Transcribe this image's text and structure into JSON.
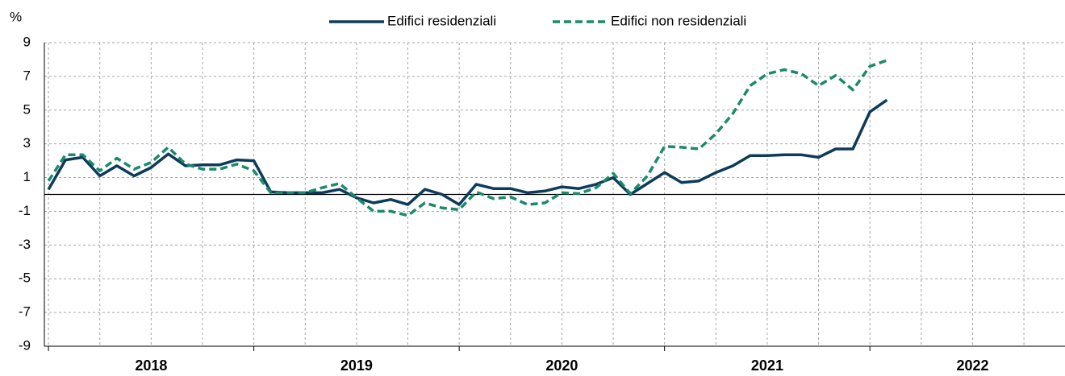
{
  "chart_data": {
    "type": "line",
    "y_unit": "%",
    "x": [
      2018,
      2018.083,
      2018.167,
      2018.25,
      2018.333,
      2018.417,
      2018.5,
      2018.583,
      2018.667,
      2018.75,
      2018.833,
      2018.917,
      2019,
      2019.083,
      2019.167,
      2019.25,
      2019.333,
      2019.417,
      2019.5,
      2019.583,
      2019.667,
      2019.75,
      2019.833,
      2019.917,
      2020,
      2020.083,
      2020.167,
      2020.25,
      2020.333,
      2020.417,
      2020.5,
      2020.583,
      2020.667,
      2020.75,
      2020.833,
      2020.917,
      2021,
      2021.083,
      2021.167,
      2021.25,
      2021.333,
      2021.417,
      2021.5,
      2021.583,
      2021.667,
      2021.75,
      2021.833,
      2021.917,
      2022,
      2022.083
    ],
    "series": [
      {
        "name": "Edifici residenziali",
        "color": "#0d3b5a",
        "dashed": false,
        "values": [
          0.3,
          2.05,
          2.2,
          1.1,
          1.7,
          1.1,
          1.6,
          2.4,
          1.7,
          1.75,
          1.75,
          2.05,
          2.0,
          0.15,
          0.1,
          0.1,
          0.1,
          0.3,
          -0.2,
          -0.5,
          -0.3,
          -0.6,
          0.3,
          0.0,
          -0.6,
          0.6,
          0.35,
          0.35,
          0.1,
          0.2,
          0.45,
          0.35,
          0.6,
          1.0,
          0.0,
          0.65,
          1.3,
          0.7,
          0.8,
          1.3,
          1.7,
          2.3,
          2.3,
          2.35,
          2.35,
          2.2,
          2.7,
          2.7,
          4.9,
          5.6
        ]
      },
      {
        "name": "Edifici non residenziali",
        "color": "#1b8a6b",
        "dashed": true,
        "values": [
          0.8,
          2.35,
          2.35,
          1.4,
          2.15,
          1.5,
          1.9,
          2.8,
          1.8,
          1.5,
          1.5,
          1.8,
          1.4,
          0.1,
          0.1,
          0.1,
          0.4,
          0.65,
          -0.2,
          -1.0,
          -1.0,
          -1.25,
          -0.5,
          -0.8,
          -0.9,
          0.15,
          -0.25,
          -0.15,
          -0.6,
          -0.5,
          0.1,
          0.05,
          0.4,
          1.25,
          0.05,
          1.1,
          2.85,
          2.8,
          2.7,
          3.6,
          4.8,
          6.45,
          7.15,
          7.4,
          7.15,
          6.45,
          7.05,
          6.2,
          7.6,
          7.95
        ]
      }
    ],
    "xlim": [
      2017.98,
      2022.95
    ],
    "xticks": [
      2018,
      2019,
      2020,
      2021,
      2022
    ],
    "ylim": [
      -9,
      9
    ],
    "yticks": [
      -9,
      -7,
      -5,
      -3,
      -1,
      1,
      3,
      5,
      7,
      9
    ],
    "grid": true,
    "legend": "top"
  }
}
